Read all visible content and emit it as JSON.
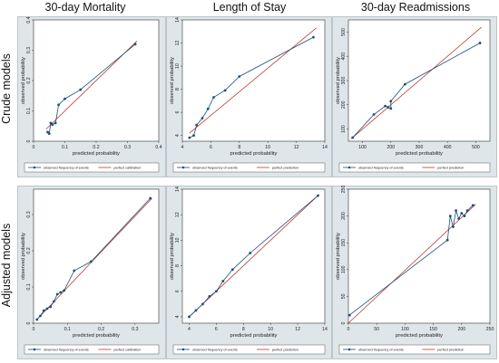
{
  "column_titles": [
    "30-day Mortality",
    "Length of Stay",
    "30-day Readmissions"
  ],
  "row_titles": [
    "Crude models",
    "Adjusted models"
  ],
  "colors": {
    "observed": "#1a4f7a",
    "perfect": "#c0392b",
    "panel_background": "#dfe6ea",
    "plot_background": "#ffffff"
  },
  "chart_data": [
    {
      "type": "line",
      "row": "Crude models",
      "column": "30-day Mortality",
      "xlabel": "predicted probability",
      "ylabel": "observed probability",
      "xlim": [
        0,
        0.4
      ],
      "ylim": [
        0,
        0.4
      ],
      "xticks": [
        "0",
        "0.1",
        "0.2",
        "0.3",
        "0.4"
      ],
      "yticks": [
        "0",
        "0.1",
        "0.2",
        "0.3",
        "0.4"
      ],
      "legend": [
        "observed frequency of events",
        "perfect calibration"
      ],
      "perfect": [
        [
          0.04,
          0.04
        ],
        [
          0.33,
          0.33
        ]
      ],
      "observed": [
        [
          0.045,
          0.03
        ],
        [
          0.05,
          0.025
        ],
        [
          0.055,
          0.06
        ],
        [
          0.06,
          0.055
        ],
        [
          0.07,
          0.06
        ],
        [
          0.08,
          0.12
        ],
        [
          0.1,
          0.14
        ],
        [
          0.15,
          0.17
        ],
        [
          0.325,
          0.32
        ]
      ]
    },
    {
      "type": "line",
      "row": "Crude models",
      "column": "Length of Stay",
      "xlabel": "predicted probability",
      "ylabel": "observed probability",
      "xlim": [
        4,
        14
      ],
      "ylim": [
        3.5,
        14
      ],
      "xticks": [
        "4",
        "6",
        "8",
        "10",
        "12",
        "14"
      ],
      "yticks": [
        "4",
        "6",
        "8",
        "10",
        "12",
        "14"
      ],
      "legend": [
        "observed frequency of events",
        "perfect prediction"
      ],
      "perfect": [
        [
          4.5,
          4.2
        ],
        [
          13.4,
          13.3
        ]
      ],
      "observed": [
        [
          4.5,
          3.8
        ],
        [
          4.8,
          4
        ],
        [
          5,
          4.9
        ],
        [
          5.4,
          5.5
        ],
        [
          5.8,
          6.3
        ],
        [
          6.2,
          7.3
        ],
        [
          7,
          7.9
        ],
        [
          8,
          9.1
        ],
        [
          13.2,
          12.5
        ]
      ]
    },
    {
      "type": "line",
      "row": "Crude models",
      "column": "30-day Readmissions",
      "xlabel": "predicted probability",
      "ylabel": "observed probability",
      "xlim": [
        50,
        550
      ],
      "ylim": [
        50,
        550
      ],
      "xticks": [
        "100",
        "200",
        "300",
        "400",
        "500"
      ],
      "yticks": [
        "100",
        "200",
        "300",
        "400",
        "500"
      ],
      "legend": [
        "observed frequency of events",
        "perfect prediction"
      ],
      "perfect": [
        [
          60,
          60
        ],
        [
          520,
          520
        ]
      ],
      "observed": [
        [
          65,
          65
        ],
        [
          140,
          160
        ],
        [
          180,
          195
        ],
        [
          190,
          190
        ],
        [
          200,
          185
        ],
        [
          200,
          215
        ],
        [
          250,
          285
        ],
        [
          515,
          455
        ]
      ]
    },
    {
      "type": "line",
      "row": "Adjusted models",
      "column": "30-day Mortality",
      "xlabel": "predicted probability",
      "ylabel": "observed probability",
      "xlim": [
        0,
        0.37
      ],
      "ylim": [
        0,
        0.37
      ],
      "xticks": [
        "0",
        "0.1",
        "0.2",
        "0.3"
      ],
      "yticks": [
        "0",
        "0.1",
        "0.2",
        "0.3"
      ],
      "legend": [
        "observed frequency of events",
        "perfect calibration"
      ],
      "perfect": [
        [
          0.01,
          0.01
        ],
        [
          0.35,
          0.345
        ]
      ],
      "observed": [
        [
          0.01,
          0.01
        ],
        [
          0.02,
          0.02
        ],
        [
          0.03,
          0.035
        ],
        [
          0.04,
          0.04
        ],
        [
          0.05,
          0.045
        ],
        [
          0.06,
          0.06
        ],
        [
          0.07,
          0.08
        ],
        [
          0.08,
          0.085
        ],
        [
          0.09,
          0.09
        ],
        [
          0.12,
          0.145
        ],
        [
          0.17,
          0.17
        ],
        [
          0.345,
          0.345
        ]
      ]
    },
    {
      "type": "line",
      "row": "Adjusted models",
      "column": "Length of Stay",
      "xlabel": "predicted probability",
      "ylabel": "observed probability",
      "xlim": [
        3.5,
        14
      ],
      "ylim": [
        3.5,
        14
      ],
      "xticks": [
        "4",
        "6",
        "8",
        "10",
        "12",
        "14"
      ],
      "yticks": [
        "4",
        "6",
        "8",
        "10",
        "12",
        "14"
      ],
      "legend": [
        "observed frequency of events",
        "perfect prediction"
      ],
      "perfect": [
        [
          4,
          4
        ],
        [
          13.5,
          13.5
        ]
      ],
      "observed": [
        [
          4,
          4
        ],
        [
          4.5,
          4.5
        ],
        [
          5,
          5
        ],
        [
          5.5,
          5.6
        ],
        [
          6,
          6
        ],
        [
          6.5,
          6.8
        ],
        [
          7.2,
          7.7
        ],
        [
          8.5,
          9
        ],
        [
          13.5,
          13.5
        ]
      ]
    },
    {
      "type": "line",
      "row": "Adjusted models",
      "column": "30-day Readmissions",
      "xlabel": "predicted probability",
      "ylabel": "observed probability",
      "xlim": [
        0,
        250
      ],
      "ylim": [
        0,
        250
      ],
      "xticks": [
        "0",
        "50",
        "100",
        "150",
        "200",
        "250"
      ],
      "yticks": [
        "0",
        "50",
        "100",
        "150",
        "200",
        "250"
      ],
      "legend": [
        "observed frequency of events",
        "perfect prediction"
      ],
      "perfect": [
        [
          0,
          0
        ],
        [
          225,
          222
        ]
      ],
      "observed": [
        [
          2,
          15
        ],
        [
          175,
          155
        ],
        [
          180,
          200
        ],
        [
          185,
          180
        ],
        [
          190,
          210
        ],
        [
          195,
          195
        ],
        [
          200,
          205
        ],
        [
          205,
          200
        ],
        [
          210,
          210
        ],
        [
          220,
          220
        ]
      ]
    }
  ]
}
